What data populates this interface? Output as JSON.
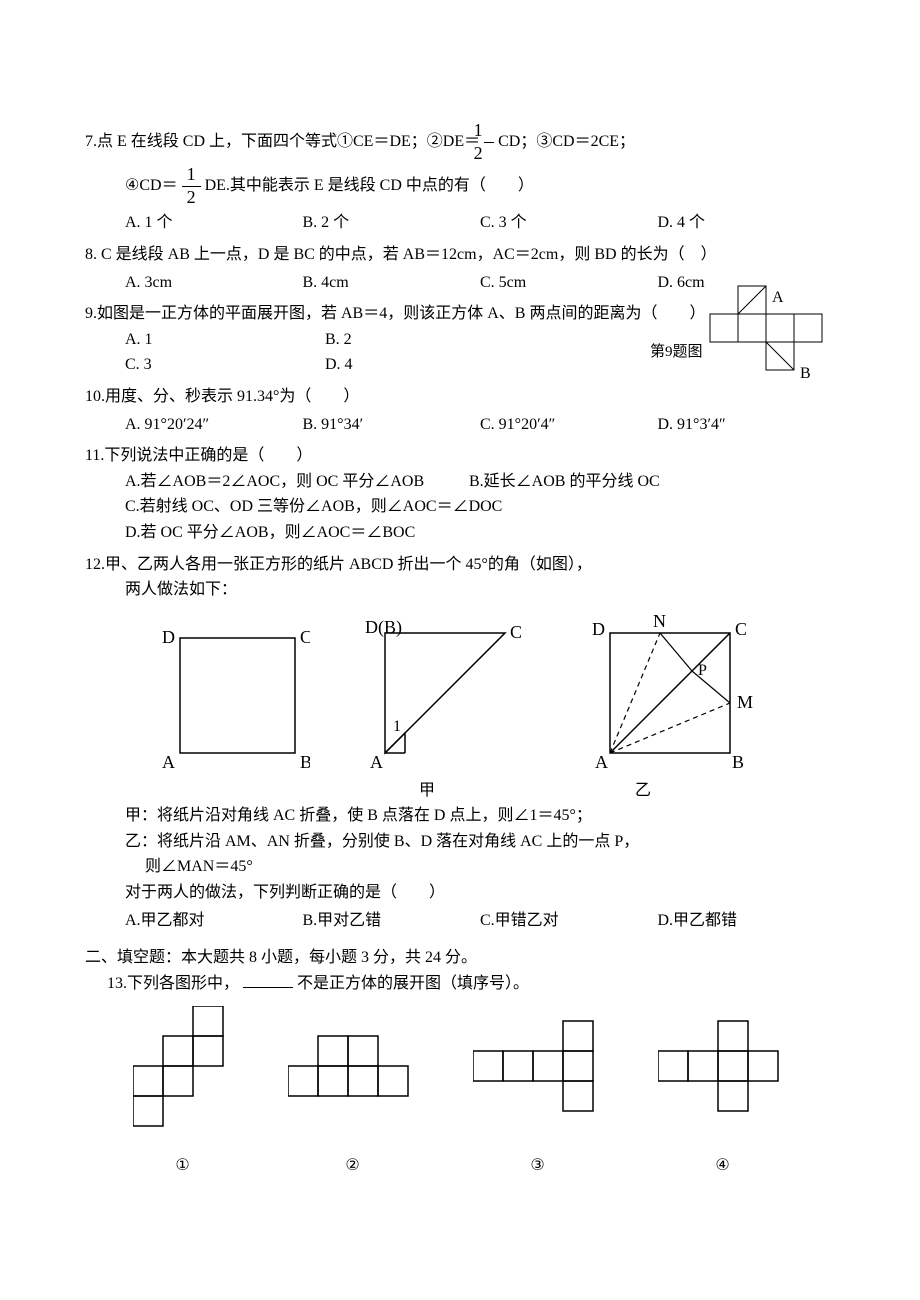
{
  "q7": {
    "text_a": "7.点 E 在线段 CD 上，下面四个等式①CE＝DE；②DE＝",
    "frac1_n": "1",
    "frac1_d": "2",
    "text_b": " CD；③CD＝2CE；",
    "sub_a": "④CD＝",
    "frac2_n": "1",
    "frac2_d": "2",
    "sub_b": " DE.其中能表示 E 是线段 CD 中点的有（　　）",
    "opts": [
      "A. 1 个",
      "B. 2 个",
      "C. 3 个",
      "D. 4 个"
    ]
  },
  "q8": {
    "text": "8. C 是线段 AB 上一点，D 是 BC 的中点，若 AB＝12cm，AC＝2cm，则 BD 的长为（　）",
    "opts": [
      "A. 3cm",
      "B. 4cm",
      "C. 5cm",
      "D. 6cm"
    ]
  },
  "q9": {
    "text": "9.如图是一正方体的平面展开图，若 AB＝4，则该正方体 A、B 两点间的距离为（　　）",
    "opts_row1": [
      "A. 1",
      "B. 2"
    ],
    "opts_row2": [
      "C. 3",
      "D. 4"
    ],
    "labelA": "A",
    "labelB": "B",
    "caption": "第9题图",
    "fig": {
      "cell": 28,
      "cells_row1": [
        1
      ],
      "cells_row2": [
        0,
        1,
        2,
        3
      ],
      "cells_row3": [
        2
      ],
      "diag_from": [
        2,
        28
      ],
      "diag_to": [
        1,
        0
      ],
      "stroke": "#000",
      "fill": "#fff"
    }
  },
  "q10": {
    "text": "10.用度、分、秒表示 91.34°为（　　）",
    "opts": [
      "A. 91°20′24″",
      "B. 91°34′",
      "C. 91°20′4″",
      "D. 91°3′4″"
    ]
  },
  "q11": {
    "text": "11.下列说法中正确的是（　　）",
    "a": "A.若∠AOB＝2∠AOC，则 OC 平分∠AOB",
    "b": "B.延长∠AOB 的平分线 OC",
    "c": "C.若射线 OC、OD 三等份∠AOB，则∠AOC＝∠DOC",
    "d": "D.若 OC 平分∠AOB，则∠AOC＝∠BOC"
  },
  "q12": {
    "text": "12.甲、乙两人各用一张正方形的纸片 ABCD 折出一个 45°的角（如图），",
    "sub": "两人做法如下：",
    "fig1": {
      "D": "D",
      "C": "C",
      "A": "A",
      "B": "B",
      "size": 115
    },
    "fig2": {
      "D": "D(B)",
      "C": "C",
      "A": "A",
      "one": "1",
      "size": 120,
      "caption": "甲"
    },
    "fig3": {
      "D": "D",
      "N": "N",
      "C": "C",
      "P": "P",
      "M": "M",
      "A": "A",
      "B": "B",
      "size": 120,
      "caption": "乙"
    },
    "jia1": "甲：将纸片沿对角线 AC 折叠，使 B 点落在 D 点上，则∠1＝45°；",
    "yi1": "乙：将纸片沿 AM、AN 折叠，分别使 B、D 落在对角线 AC 上的一点 P，",
    "yi2": "则∠MAN＝45°",
    "judge": "对于两人的做法，下列判断正确的是（　　）",
    "opts": [
      "A.甲乙都对",
      "B.甲对乙错",
      "C.甲错乙对",
      "D.甲乙都错"
    ]
  },
  "section2": "二、填空题：本大题共 8 小题，每小题 3 分，共 24 分。",
  "q13": {
    "text_a": "13.下列各图形中，",
    "text_b": "不是正方体的展开图（填序号）。",
    "figs": {
      "cell": 30,
      "f1": [
        [
          2,
          0
        ],
        [
          1,
          1
        ],
        [
          2,
          1
        ],
        [
          0,
          2
        ],
        [
          1,
          2
        ],
        [
          0,
          3
        ]
      ],
      "f2": [
        [
          1,
          0
        ],
        [
          2,
          0
        ],
        [
          0,
          1
        ],
        [
          1,
          1
        ],
        [
          2,
          1
        ],
        [
          3,
          1
        ]
      ],
      "f3": [
        [
          3,
          0
        ],
        [
          0,
          1
        ],
        [
          1,
          1
        ],
        [
          2,
          1
        ],
        [
          3,
          1
        ],
        [
          3,
          2
        ]
      ],
      "f4": [
        [
          2,
          0
        ],
        [
          0,
          1
        ],
        [
          1,
          1
        ],
        [
          2,
          1
        ],
        [
          3,
          1
        ],
        [
          2,
          2
        ]
      ]
    },
    "labels": [
      "①",
      "②",
      "③",
      "④"
    ]
  },
  "colors": {
    "stroke": "#000000",
    "bg": "#ffffff"
  }
}
